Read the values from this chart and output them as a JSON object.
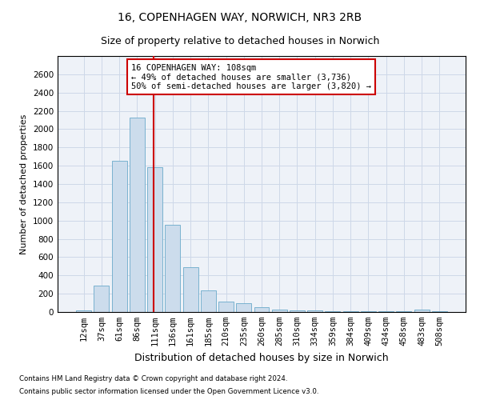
{
  "title": "16, COPENHAGEN WAY, NORWICH, NR3 2RB",
  "subtitle": "Size of property relative to detached houses in Norwich",
  "xlabel": "Distribution of detached houses by size in Norwich",
  "ylabel": "Number of detached properties",
  "bar_color": "#ccdcec",
  "bar_edge_color": "#6aaaca",
  "grid_color": "#cdd8e8",
  "annotation_line_color": "#cc0000",
  "annotation_box_color": "#cc0000",
  "annotation_text_line1": "16 COPENHAGEN WAY: 108sqm",
  "annotation_text_line2": "← 49% of detached houses are smaller (3,736)",
  "annotation_text_line3": "50% of semi-detached houses are larger (3,820) →",
  "footnote1": "Contains HM Land Registry data © Crown copyright and database right 2024.",
  "footnote2": "Contains public sector information licensed under the Open Government Licence v3.0.",
  "categories": [
    "12sqm",
    "37sqm",
    "61sqm",
    "86sqm",
    "111sqm",
    "136sqm",
    "161sqm",
    "185sqm",
    "210sqm",
    "235sqm",
    "260sqm",
    "285sqm",
    "310sqm",
    "334sqm",
    "359sqm",
    "384sqm",
    "409sqm",
    "434sqm",
    "458sqm",
    "483sqm",
    "508sqm"
  ],
  "values": [
    20,
    290,
    1650,
    2130,
    1580,
    950,
    490,
    240,
    110,
    100,
    50,
    30,
    18,
    15,
    12,
    10,
    8,
    5,
    5,
    22,
    5
  ],
  "ylim": [
    0,
    2800
  ],
  "yticks": [
    0,
    200,
    400,
    600,
    800,
    1000,
    1200,
    1400,
    1600,
    1800,
    2000,
    2200,
    2400,
    2600
  ],
  "title_fontsize": 10,
  "subtitle_fontsize": 9,
  "ylabel_fontsize": 8,
  "xlabel_fontsize": 9,
  "tick_fontsize": 7.5,
  "annotation_fontsize": 7.5,
  "footnote_fontsize": 6.2,
  "line_x_index": 3.92
}
